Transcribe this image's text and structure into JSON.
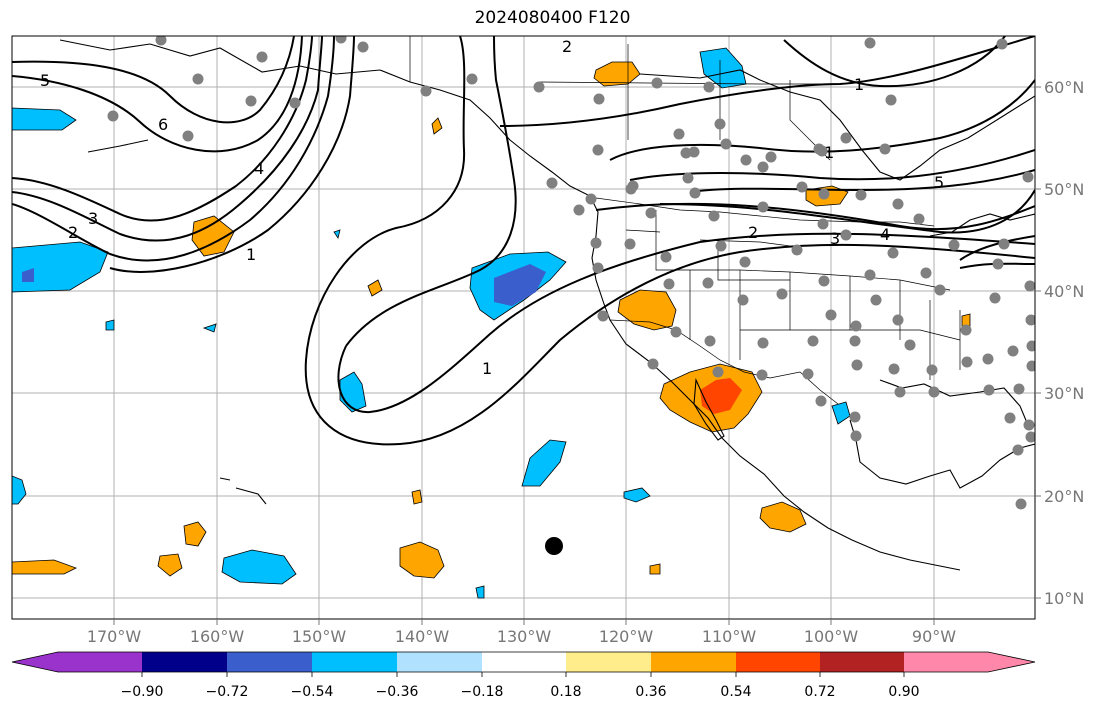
{
  "title": "2024080400 F120",
  "lon_labels": [
    "170°W",
    "160°W",
    "150°W",
    "140°W",
    "130°W",
    "120°W",
    "110°W",
    "100°W",
    "90°W"
  ],
  "lat_labels": [
    "60°N",
    "50°N",
    "40°N",
    "30°N",
    "20°N",
    "10°N"
  ],
  "contour_labels": [
    "5",
    "6",
    "4",
    "3",
    "2",
    "1",
    "1",
    "1",
    "2",
    "3",
    "4",
    "5",
    "1",
    "2"
  ],
  "colorbar": {
    "colors": [
      "#9933cc",
      "#00008b",
      "#3a5fcd",
      "#00bfff",
      "#b0e2ff",
      "#ffffff",
      "#ffec8b",
      "#ffa500",
      "#ff4500",
      "#b22222",
      "#ff88aa"
    ],
    "ticks": [
      "−0.90",
      "−0.72",
      "−0.54",
      "−0.36",
      "−0.18",
      "0.18",
      "0.36",
      "0.54",
      "0.72",
      "0.90"
    ]
  }
}
